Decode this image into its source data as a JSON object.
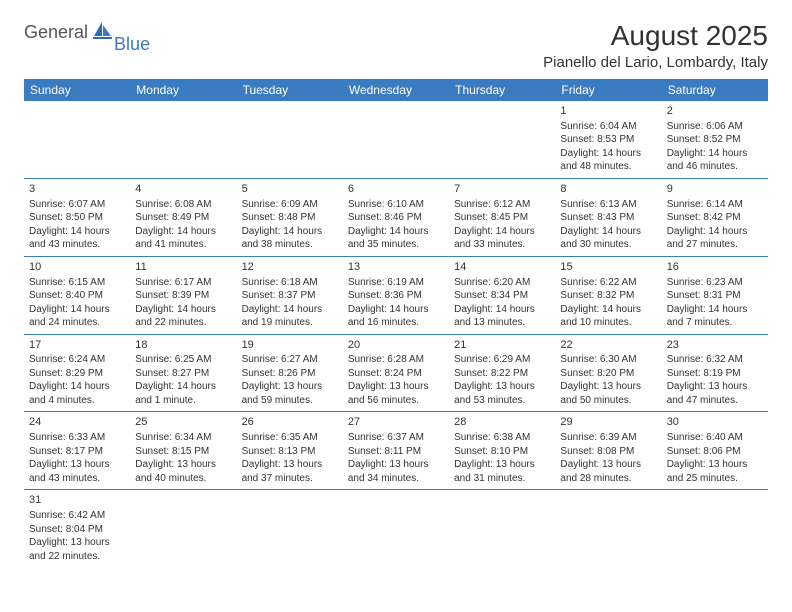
{
  "logo": {
    "general": "General",
    "blue": "Blue"
  },
  "title": "August 2025",
  "location": "Pianello del Lario, Lombardy, Italy",
  "colors": {
    "header_bg": "#3b7bbf",
    "header_text": "#ffffff",
    "border": "#3b7bbf",
    "text": "#333333",
    "background": "#ffffff"
  },
  "typography": {
    "title_fontsize": 28,
    "location_fontsize": 15,
    "dayheader_fontsize": 12,
    "cell_fontsize": 10
  },
  "day_headers": [
    "Sunday",
    "Monday",
    "Tuesday",
    "Wednesday",
    "Thursday",
    "Friday",
    "Saturday"
  ],
  "weeks": [
    [
      null,
      null,
      null,
      null,
      null,
      {
        "n": "1",
        "sr": "6:04 AM",
        "ss": "8:53 PM",
        "dl1": "14 hours",
        "dl2": "and 48 minutes."
      },
      {
        "n": "2",
        "sr": "6:06 AM",
        "ss": "8:52 PM",
        "dl1": "14 hours",
        "dl2": "and 46 minutes."
      }
    ],
    [
      {
        "n": "3",
        "sr": "6:07 AM",
        "ss": "8:50 PM",
        "dl1": "14 hours",
        "dl2": "and 43 minutes."
      },
      {
        "n": "4",
        "sr": "6:08 AM",
        "ss": "8:49 PM",
        "dl1": "14 hours",
        "dl2": "and 41 minutes."
      },
      {
        "n": "5",
        "sr": "6:09 AM",
        "ss": "8:48 PM",
        "dl1": "14 hours",
        "dl2": "and 38 minutes."
      },
      {
        "n": "6",
        "sr": "6:10 AM",
        "ss": "8:46 PM",
        "dl1": "14 hours",
        "dl2": "and 35 minutes."
      },
      {
        "n": "7",
        "sr": "6:12 AM",
        "ss": "8:45 PM",
        "dl1": "14 hours",
        "dl2": "and 33 minutes."
      },
      {
        "n": "8",
        "sr": "6:13 AM",
        "ss": "8:43 PM",
        "dl1": "14 hours",
        "dl2": "and 30 minutes."
      },
      {
        "n": "9",
        "sr": "6:14 AM",
        "ss": "8:42 PM",
        "dl1": "14 hours",
        "dl2": "and 27 minutes."
      }
    ],
    [
      {
        "n": "10",
        "sr": "6:15 AM",
        "ss": "8:40 PM",
        "dl1": "14 hours",
        "dl2": "and 24 minutes."
      },
      {
        "n": "11",
        "sr": "6:17 AM",
        "ss": "8:39 PM",
        "dl1": "14 hours",
        "dl2": "and 22 minutes."
      },
      {
        "n": "12",
        "sr": "6:18 AM",
        "ss": "8:37 PM",
        "dl1": "14 hours",
        "dl2": "and 19 minutes."
      },
      {
        "n": "13",
        "sr": "6:19 AM",
        "ss": "8:36 PM",
        "dl1": "14 hours",
        "dl2": "and 16 minutes."
      },
      {
        "n": "14",
        "sr": "6:20 AM",
        "ss": "8:34 PM",
        "dl1": "14 hours",
        "dl2": "and 13 minutes."
      },
      {
        "n": "15",
        "sr": "6:22 AM",
        "ss": "8:32 PM",
        "dl1": "14 hours",
        "dl2": "and 10 minutes."
      },
      {
        "n": "16",
        "sr": "6:23 AM",
        "ss": "8:31 PM",
        "dl1": "14 hours",
        "dl2": "and 7 minutes."
      }
    ],
    [
      {
        "n": "17",
        "sr": "6:24 AM",
        "ss": "8:29 PM",
        "dl1": "14 hours",
        "dl2": "and 4 minutes."
      },
      {
        "n": "18",
        "sr": "6:25 AM",
        "ss": "8:27 PM",
        "dl1": "14 hours",
        "dl2": "and 1 minute."
      },
      {
        "n": "19",
        "sr": "6:27 AM",
        "ss": "8:26 PM",
        "dl1": "13 hours",
        "dl2": "and 59 minutes."
      },
      {
        "n": "20",
        "sr": "6:28 AM",
        "ss": "8:24 PM",
        "dl1": "13 hours",
        "dl2": "and 56 minutes."
      },
      {
        "n": "21",
        "sr": "6:29 AM",
        "ss": "8:22 PM",
        "dl1": "13 hours",
        "dl2": "and 53 minutes."
      },
      {
        "n": "22",
        "sr": "6:30 AM",
        "ss": "8:20 PM",
        "dl1": "13 hours",
        "dl2": "and 50 minutes."
      },
      {
        "n": "23",
        "sr": "6:32 AM",
        "ss": "8:19 PM",
        "dl1": "13 hours",
        "dl2": "and 47 minutes."
      }
    ],
    [
      {
        "n": "24",
        "sr": "6:33 AM",
        "ss": "8:17 PM",
        "dl1": "13 hours",
        "dl2": "and 43 minutes."
      },
      {
        "n": "25",
        "sr": "6:34 AM",
        "ss": "8:15 PM",
        "dl1": "13 hours",
        "dl2": "and 40 minutes."
      },
      {
        "n": "26",
        "sr": "6:35 AM",
        "ss": "8:13 PM",
        "dl1": "13 hours",
        "dl2": "and 37 minutes."
      },
      {
        "n": "27",
        "sr": "6:37 AM",
        "ss": "8:11 PM",
        "dl1": "13 hours",
        "dl2": "and 34 minutes."
      },
      {
        "n": "28",
        "sr": "6:38 AM",
        "ss": "8:10 PM",
        "dl1": "13 hours",
        "dl2": "and 31 minutes."
      },
      {
        "n": "29",
        "sr": "6:39 AM",
        "ss": "8:08 PM",
        "dl1": "13 hours",
        "dl2": "and 28 minutes."
      },
      {
        "n": "30",
        "sr": "6:40 AM",
        "ss": "8:06 PM",
        "dl1": "13 hours",
        "dl2": "and 25 minutes."
      }
    ],
    [
      {
        "n": "31",
        "sr": "6:42 AM",
        "ss": "8:04 PM",
        "dl1": "13 hours",
        "dl2": "and 22 minutes."
      },
      null,
      null,
      null,
      null,
      null,
      null
    ]
  ],
  "labels": {
    "sunrise_prefix": "Sunrise: ",
    "sunset_prefix": "Sunset: ",
    "daylight_prefix": "Daylight: "
  }
}
